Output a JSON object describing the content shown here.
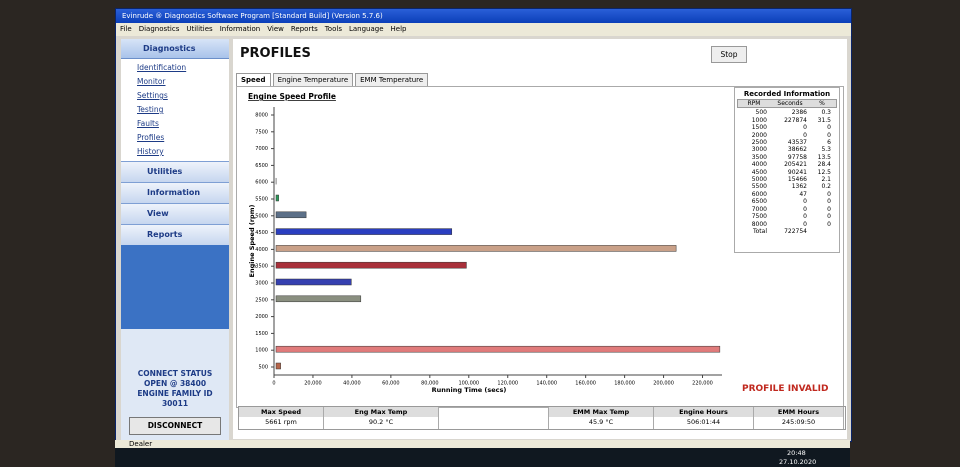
{
  "window": {
    "title": "Evinrude ® Diagnostics Software Program [Standard Build] (Version 5.7.6)"
  },
  "menu": [
    "File",
    "Diagnostics",
    "Utilities",
    "Information",
    "View",
    "Reports",
    "Tools",
    "Language",
    "Help"
  ],
  "sidebar": {
    "header": "Diagnostics",
    "items": [
      "Identification",
      "Monitor",
      "Settings",
      "Testing",
      "Faults",
      "Profiles",
      "History"
    ],
    "sections": [
      "Utilities",
      "Information",
      "View",
      "Reports"
    ],
    "connect_status": "CONNECT STATUS",
    "port": "OPEN @ 38400",
    "family_label": "ENGINE FAMILY ID",
    "family_id": "30011",
    "disconnect": "DISCONNECT"
  },
  "page": {
    "title": "PROFILES",
    "stop": "Stop",
    "tabs": [
      "Speed",
      "Engine Temperature",
      "EMM Temperature"
    ],
    "warning": "PROFILE INVALID"
  },
  "chart_data": {
    "type": "bar",
    "orientation": "horizontal",
    "title": "Engine Speed Profile",
    "y_label": "Engine Speed (rpm)",
    "x_label": "Running Time (secs)",
    "categories": [
      "500",
      "1000",
      "1500",
      "2000",
      "2500",
      "3000",
      "3500",
      "4000",
      "4500",
      "5000",
      "5500",
      "6000",
      "6500",
      "7000",
      "7500",
      "8000"
    ],
    "values": [
      2386,
      227874,
      0,
      0,
      43537,
      38662,
      97758,
      205421,
      90241,
      15466,
      1362,
      47,
      0,
      0,
      0,
      0
    ],
    "colors": [
      "#b5654a",
      "#e07b7b",
      "#3a8fb0",
      "#3a6fb0",
      "#8a8f80",
      "#3540b0",
      "#a8303a",
      "#c9a088",
      "#2a3ec0",
      "#5c7088",
      "#2a9a5a",
      "#222222",
      "#222222",
      "#222222",
      "#222222",
      "#222222"
    ],
    "xlim": [
      0,
      230000
    ],
    "xticks": [
      0,
      {
        "value": 20000,
        "label": "20,000"
      },
      {
        "value": 40000,
        "label": "40,000"
      },
      {
        "value": 60000,
        "label": "60,000"
      },
      {
        "value": 80000,
        "label": "80,000"
      },
      {
        "value": 100000,
        "label": "100,000"
      },
      {
        "value": 120000,
        "label": "120,000"
      },
      {
        "value": 140000,
        "label": "140,000"
      },
      {
        "value": 160000,
        "label": "160,000"
      },
      {
        "value": 180000,
        "label": "180,000"
      },
      {
        "value": 200000,
        "label": "200,000"
      },
      {
        "value": 220000,
        "label": "220,000"
      }
    ]
  },
  "recorded": {
    "title": "Recorded Information",
    "columns": [
      "RPM",
      "Seconds",
      "%"
    ],
    "percent": [
      0.3,
      31.5,
      0,
      0,
      6,
      5.3,
      13.5,
      28.4,
      12.5,
      2.1,
      0.2,
      0,
      0,
      0,
      0,
      0
    ],
    "total_label": "Total",
    "total": 722754
  },
  "summary": [
    {
      "label": "Max Speed",
      "value": "5661 rpm"
    },
    {
      "label": "Eng Max Temp",
      "value": "90.2 °C"
    },
    {
      "label": "EMM Max Temp",
      "value": "45.9 °C"
    },
    {
      "label": "Engine Hours",
      "value": "506:01:44"
    },
    {
      "label": "EMM Hours",
      "value": "245:09:50"
    }
  ],
  "status_bar": "Dealer",
  "taskbar": {
    "time": "20:48",
    "date": "27.10.2020"
  }
}
